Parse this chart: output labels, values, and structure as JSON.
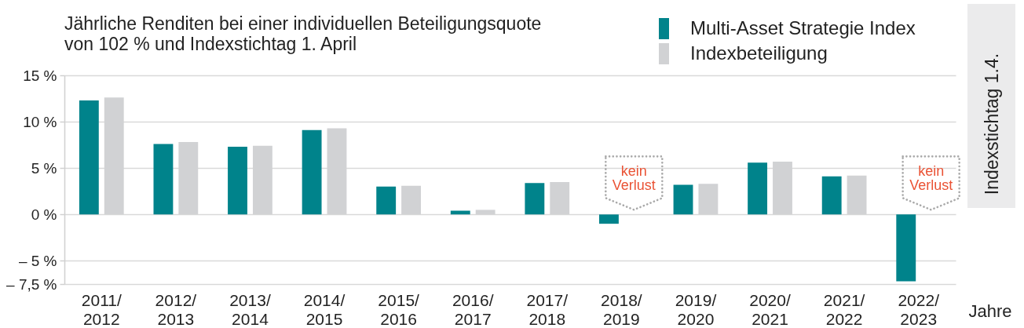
{
  "chart_data": {
    "type": "bar",
    "title": "Jährliche Renditen bei einer individuellen Beteiligungsquote von 102 % und Indexstichtag 1. April",
    "xlabel": "Jahre",
    "categories": [
      "2011/2012",
      "2012/2013",
      "2013/2014",
      "2014/2015",
      "2015/2016",
      "2016/2017",
      "2017/2018",
      "2018/2019",
      "2019/2020",
      "2020/2021",
      "2021/2022",
      "2022/2023"
    ],
    "series": [
      {
        "name": "Multi-Asset Strategie Index",
        "color": "#00838b",
        "values": [
          12.3,
          7.6,
          7.3,
          9.1,
          3.0,
          0.4,
          3.4,
          -1.0,
          3.2,
          5.6,
          4.1,
          -7.2
        ]
      },
      {
        "name": "Indexbeteiligung",
        "color": "#d1d2d4",
        "values": [
          12.6,
          7.8,
          7.4,
          9.3,
          3.1,
          0.5,
          3.5,
          0,
          3.3,
          5.7,
          4.2,
          0
        ]
      }
    ],
    "ylim": [
      -7.5,
      15
    ],
    "yticks": [
      {
        "value": -7.5,
        "label": "– 7,5 %"
      },
      {
        "value": -5,
        "label": "– 5 %"
      },
      {
        "value": 0,
        "label": "0 %"
      },
      {
        "value": 5,
        "label": "5 %"
      },
      {
        "value": 10,
        "label": "10 %"
      },
      {
        "value": 15,
        "label": "15 %"
      }
    ],
    "grid": "y",
    "legend": "top right",
    "annotations": [
      {
        "text": "kein Verlust",
        "x": "2018/2019",
        "y": 0
      },
      {
        "text": "kein Verlust",
        "x": "2022/2023",
        "y": 0
      },
      "Indexstichtag 1.4."
    ]
  }
}
